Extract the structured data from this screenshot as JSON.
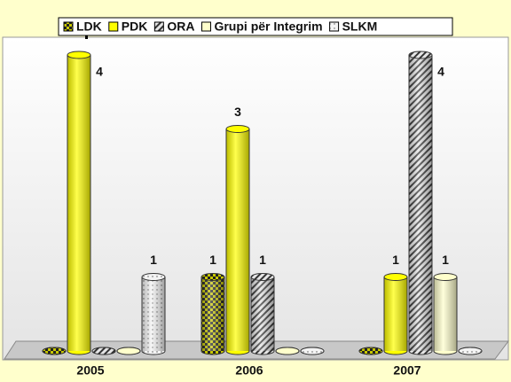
{
  "chart_data": {
    "type": "bar3d",
    "categories": [
      "2005",
      "2006",
      "2007"
    ],
    "series": [
      {
        "name": "LDK",
        "color": "#c8c800",
        "values": [
          0,
          1,
          0
        ]
      },
      {
        "name": "PDK",
        "color": "#ffff00",
        "values": [
          4,
          3,
          1
        ]
      },
      {
        "name": "ORA",
        "color": "#b4b4b4",
        "values": [
          0,
          1,
          4
        ]
      },
      {
        "name": "Grupi për Integrim",
        "color": "#ffffcc",
        "values": [
          0,
          0,
          1
        ]
      },
      {
        "name": "SLKM",
        "color": "#f0f0f0",
        "values": [
          1,
          0,
          0
        ]
      }
    ],
    "ylim": [
      0,
      4
    ],
    "legend": "top"
  }
}
